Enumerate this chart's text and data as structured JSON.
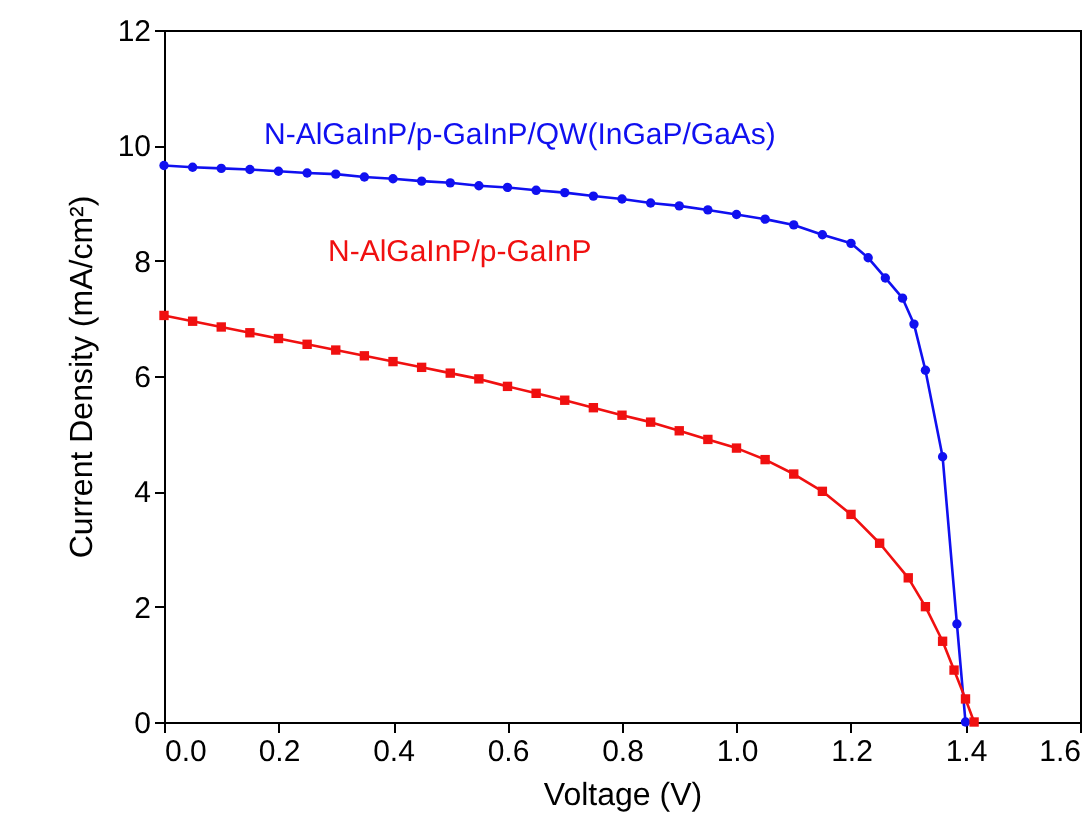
{
  "chart_data": {
    "type": "line",
    "xlabel": "Voltage (V)",
    "ylabel": "Current Density (mA/cm²)",
    "xlim": [
      0,
      1.6
    ],
    "xticks": [
      {
        "value": 0,
        "label": "0.0"
      },
      0.2,
      0.4,
      0.6,
      0.8,
      {
        "value": 1,
        "label": "1.0"
      },
      1.2,
      1.4,
      1.6
    ],
    "ylim": [
      0,
      12
    ],
    "yticks": [
      0,
      2,
      4,
      6,
      8,
      10,
      12
    ],
    "series": [
      {
        "name": "N-AlGaInP/p-GaInP/QW(InGaP/GaAs)",
        "color": "#1010f0",
        "marker": "circle",
        "x": [
          0,
          0.05,
          0.1,
          0.15,
          0.2,
          0.25,
          0.3,
          0.35,
          0.4,
          0.45,
          0.5,
          0.55,
          0.6,
          0.65,
          0.7,
          0.75,
          0.8,
          0.85,
          0.9,
          0.95,
          1,
          1.05,
          1.1,
          1.15,
          1.2,
          1.23,
          1.26,
          1.29,
          1.31,
          1.33,
          1.36,
          1.385,
          1.4
        ],
        "values": [
          9.65,
          9.62,
          9.6,
          9.58,
          9.55,
          9.52,
          9.5,
          9.45,
          9.42,
          9.38,
          9.35,
          9.3,
          9.27,
          9.22,
          9.18,
          9.12,
          9.07,
          9,
          8.95,
          8.88,
          8.8,
          8.72,
          8.62,
          8.45,
          8.3,
          8.05,
          7.7,
          7.35,
          6.9,
          6.1,
          4.6,
          1.7,
          0
        ]
      },
      {
        "name": "N-AlGaInP/p-GaInP",
        "color": "#f01010",
        "marker": "square",
        "x": [
          0,
          0.05,
          0.1,
          0.15,
          0.2,
          0.25,
          0.3,
          0.35,
          0.4,
          0.45,
          0.5,
          0.55,
          0.6,
          0.65,
          0.7,
          0.75,
          0.8,
          0.85,
          0.9,
          0.95,
          1,
          1.05,
          1.1,
          1.15,
          1.2,
          1.25,
          1.3,
          1.33,
          1.36,
          1.38,
          1.4,
          1.415
        ],
        "values": [
          7.05,
          6.95,
          6.85,
          6.75,
          6.65,
          6.55,
          6.45,
          6.35,
          6.25,
          6.15,
          6.05,
          5.95,
          5.82,
          5.7,
          5.58,
          5.45,
          5.32,
          5.2,
          5.05,
          4.9,
          4.75,
          4.55,
          4.3,
          4,
          3.6,
          3.1,
          2.5,
          2,
          1.4,
          0.9,
          0.4,
          0
        ]
      }
    ]
  }
}
